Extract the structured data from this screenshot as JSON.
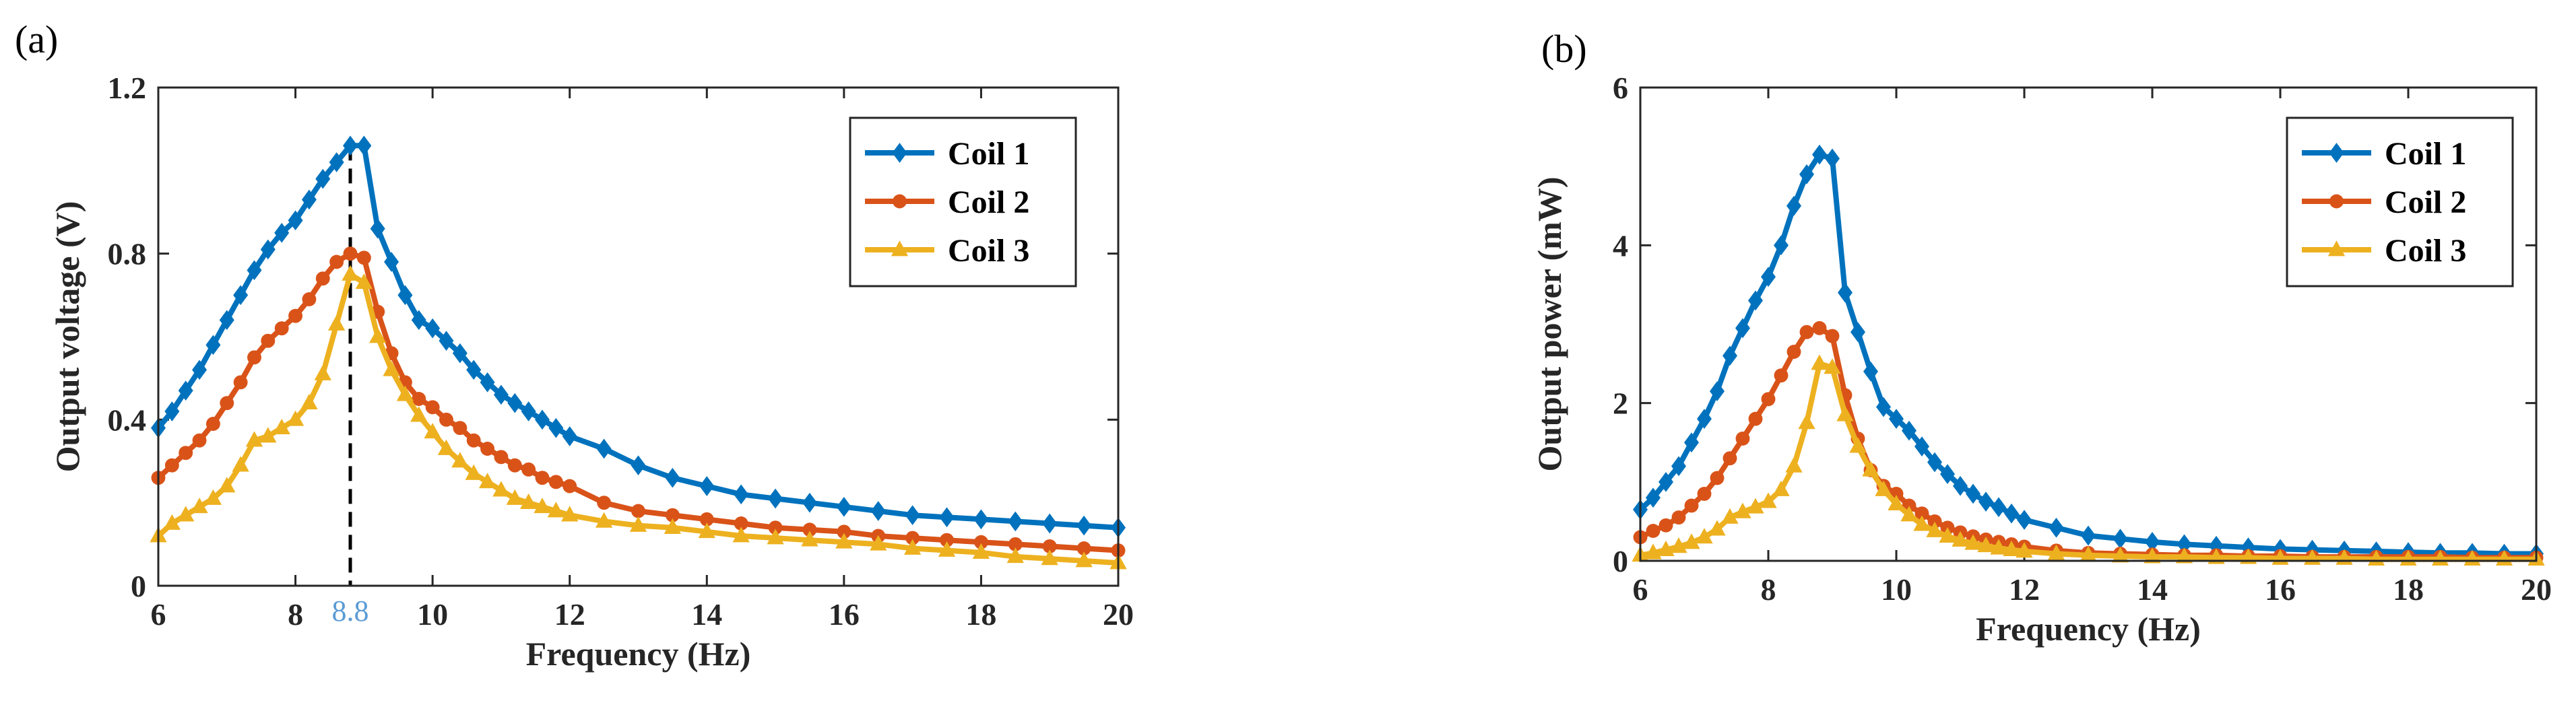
{
  "chart_data": [
    {
      "type": "line",
      "panel_label": "(a)",
      "xlabel": "Frequency (Hz)",
      "ylabel": "Output voltage (V)",
      "xlim": [
        6,
        20
      ],
      "ylim": [
        0,
        1.2
      ],
      "xticks": [
        6,
        8,
        10,
        12,
        14,
        16,
        18,
        20
      ],
      "yticks": [
        0,
        0.4,
        0.8,
        1.2
      ],
      "xtick_labels": [
        "6",
        "8",
        "10",
        "12",
        "14",
        "16",
        "18",
        "20"
      ],
      "ytick_labels": [
        "0",
        "0.4",
        "0.8",
        "1.2"
      ],
      "legend_position": "top-right",
      "annotation": {
        "x": 8.8,
        "label": "8.8",
        "style": "dashed vertical line"
      },
      "series": [
        {
          "name": "Coil 1",
          "color": "#0072bd",
          "marker": "diamond",
          "x": [
            6,
            6.2,
            6.4,
            6.6,
            6.8,
            7,
            7.2,
            7.4,
            7.6,
            7.8,
            8,
            8.2,
            8.4,
            8.6,
            8.8,
            9,
            9.2,
            9.4,
            9.6,
            9.8,
            10,
            10.2,
            10.4,
            10.6,
            10.8,
            11,
            11.2,
            11.4,
            11.6,
            11.8,
            12,
            12.5,
            13,
            13.5,
            14,
            14.5,
            15,
            15.5,
            16,
            16.5,
            17,
            17.5,
            18,
            18.5,
            19,
            19.5,
            20
          ],
          "y": [
            0.38,
            0.42,
            0.47,
            0.52,
            0.58,
            0.64,
            0.7,
            0.76,
            0.81,
            0.85,
            0.88,
            0.93,
            0.98,
            1.02,
            1.06,
            1.06,
            0.86,
            0.78,
            0.7,
            0.64,
            0.62,
            0.59,
            0.56,
            0.52,
            0.49,
            0.46,
            0.44,
            0.42,
            0.4,
            0.38,
            0.36,
            0.33,
            0.29,
            0.26,
            0.24,
            0.22,
            0.21,
            0.2,
            0.19,
            0.18,
            0.17,
            0.165,
            0.16,
            0.155,
            0.15,
            0.145,
            0.14
          ]
        },
        {
          "name": "Coil 2",
          "color": "#d95319",
          "marker": "circle",
          "x": [
            6,
            6.2,
            6.4,
            6.6,
            6.8,
            7,
            7.2,
            7.4,
            7.6,
            7.8,
            8,
            8.2,
            8.4,
            8.6,
            8.8,
            9,
            9.2,
            9.4,
            9.6,
            9.8,
            10,
            10.2,
            10.4,
            10.6,
            10.8,
            11,
            11.2,
            11.4,
            11.6,
            11.8,
            12,
            12.5,
            13,
            13.5,
            14,
            14.5,
            15,
            15.5,
            16,
            16.5,
            17,
            17.5,
            18,
            18.5,
            19,
            19.5,
            20
          ],
          "y": [
            0.26,
            0.29,
            0.32,
            0.35,
            0.39,
            0.44,
            0.49,
            0.55,
            0.59,
            0.62,
            0.65,
            0.69,
            0.74,
            0.78,
            0.8,
            0.79,
            0.66,
            0.56,
            0.49,
            0.45,
            0.43,
            0.4,
            0.38,
            0.35,
            0.33,
            0.31,
            0.29,
            0.28,
            0.26,
            0.25,
            0.24,
            0.2,
            0.18,
            0.17,
            0.16,
            0.15,
            0.14,
            0.135,
            0.13,
            0.12,
            0.115,
            0.11,
            0.105,
            0.1,
            0.095,
            0.09,
            0.085
          ]
        },
        {
          "name": "Coil 3",
          "color": "#edb120",
          "marker": "triangle",
          "x": [
            6,
            6.2,
            6.4,
            6.6,
            6.8,
            7,
            7.2,
            7.4,
            7.6,
            7.8,
            8,
            8.2,
            8.4,
            8.6,
            8.8,
            9,
            9.2,
            9.4,
            9.6,
            9.8,
            10,
            10.2,
            10.4,
            10.6,
            10.8,
            11,
            11.2,
            11.4,
            11.6,
            11.8,
            12,
            12.5,
            13,
            13.5,
            14,
            14.5,
            15,
            15.5,
            16,
            16.5,
            17,
            17.5,
            18,
            18.5,
            19,
            19.5,
            20
          ],
          "y": [
            0.12,
            0.15,
            0.17,
            0.19,
            0.21,
            0.24,
            0.29,
            0.35,
            0.36,
            0.38,
            0.4,
            0.44,
            0.51,
            0.63,
            0.75,
            0.73,
            0.6,
            0.52,
            0.46,
            0.41,
            0.37,
            0.33,
            0.3,
            0.27,
            0.25,
            0.23,
            0.21,
            0.2,
            0.19,
            0.18,
            0.17,
            0.155,
            0.145,
            0.14,
            0.13,
            0.12,
            0.115,
            0.11,
            0.105,
            0.1,
            0.09,
            0.085,
            0.08,
            0.07,
            0.065,
            0.06,
            0.055
          ]
        }
      ]
    },
    {
      "type": "line",
      "panel_label": "(b)",
      "xlabel": "Frequency (Hz)",
      "ylabel": "Output power (mW)",
      "xlim": [
        6,
        20
      ],
      "ylim": [
        0,
        6
      ],
      "xticks": [
        6,
        8,
        10,
        12,
        14,
        16,
        18,
        20
      ],
      "yticks": [
        0,
        2,
        4,
        6
      ],
      "xtick_labels": [
        "6",
        "8",
        "10",
        "12",
        "14",
        "16",
        "18",
        "20"
      ],
      "ytick_labels": [
        "0",
        "2",
        "4",
        "6"
      ],
      "legend_position": "top-right",
      "series": [
        {
          "name": "Coil 1",
          "color": "#0072bd",
          "marker": "diamond",
          "x": [
            6,
            6.2,
            6.4,
            6.6,
            6.8,
            7,
            7.2,
            7.4,
            7.6,
            7.8,
            8,
            8.2,
            8.4,
            8.6,
            8.8,
            9,
            9.2,
            9.4,
            9.6,
            9.8,
            10,
            10.2,
            10.4,
            10.6,
            10.8,
            11,
            11.2,
            11.4,
            11.6,
            11.8,
            12,
            12.5,
            13,
            13.5,
            14,
            14.5,
            15,
            15.5,
            16,
            16.5,
            17,
            17.5,
            18,
            18.5,
            19,
            19.5,
            20
          ],
          "y": [
            0.65,
            0.8,
            1.0,
            1.2,
            1.5,
            1.8,
            2.15,
            2.6,
            2.95,
            3.3,
            3.6,
            4.0,
            4.5,
            4.9,
            5.15,
            5.1,
            3.4,
            2.9,
            2.4,
            1.95,
            1.8,
            1.65,
            1.45,
            1.25,
            1.1,
            0.95,
            0.85,
            0.75,
            0.68,
            0.6,
            0.52,
            0.42,
            0.32,
            0.28,
            0.24,
            0.21,
            0.19,
            0.17,
            0.15,
            0.14,
            0.13,
            0.12,
            0.11,
            0.1,
            0.1,
            0.09,
            0.09
          ]
        },
        {
          "name": "Coil 2",
          "color": "#d95319",
          "marker": "circle",
          "x": [
            6,
            6.2,
            6.4,
            6.6,
            6.8,
            7,
            7.2,
            7.4,
            7.6,
            7.8,
            8,
            8.2,
            8.4,
            8.6,
            8.8,
            9,
            9.2,
            9.4,
            9.6,
            9.8,
            10,
            10.2,
            10.4,
            10.6,
            10.8,
            11,
            11.2,
            11.4,
            11.6,
            11.8,
            12,
            12.5,
            13,
            13.5,
            14,
            14.5,
            15,
            15.5,
            16,
            16.5,
            17,
            17.5,
            18,
            18.5,
            19,
            19.5,
            20
          ],
          "y": [
            0.3,
            0.38,
            0.45,
            0.55,
            0.7,
            0.85,
            1.05,
            1.3,
            1.55,
            1.8,
            2.05,
            2.35,
            2.65,
            2.9,
            2.95,
            2.85,
            2.1,
            1.55,
            1.15,
            0.95,
            0.85,
            0.7,
            0.6,
            0.5,
            0.42,
            0.36,
            0.31,
            0.27,
            0.24,
            0.21,
            0.18,
            0.13,
            0.1,
            0.09,
            0.08,
            0.07,
            0.07,
            0.06,
            0.06,
            0.05,
            0.05,
            0.05,
            0.05,
            0.05,
            0.04,
            0.04,
            0.04
          ]
        },
        {
          "name": "Coil 3",
          "color": "#edb120",
          "marker": "triangle",
          "x": [
            6,
            6.2,
            6.4,
            6.6,
            6.8,
            7,
            7.2,
            7.4,
            7.6,
            7.8,
            8,
            8.2,
            8.4,
            8.6,
            8.8,
            9,
            9.2,
            9.4,
            9.6,
            9.8,
            10,
            10.2,
            10.4,
            10.6,
            10.8,
            11,
            11.2,
            11.4,
            11.6,
            11.8,
            12,
            12.5,
            13,
            13.5,
            14,
            14.5,
            15,
            15.5,
            16,
            16.5,
            17,
            17.5,
            18,
            18.5,
            19,
            19.5,
            20
          ],
          "y": [
            0.07,
            0.1,
            0.14,
            0.18,
            0.23,
            0.3,
            0.4,
            0.55,
            0.62,
            0.68,
            0.75,
            0.9,
            1.2,
            1.75,
            2.5,
            2.45,
            1.85,
            1.45,
            1.15,
            0.9,
            0.72,
            0.58,
            0.46,
            0.38,
            0.31,
            0.26,
            0.22,
            0.19,
            0.16,
            0.14,
            0.12,
            0.09,
            0.07,
            0.06,
            0.05,
            0.05,
            0.04,
            0.04,
            0.03,
            0.03,
            0.03,
            0.02,
            0.02,
            0.02,
            0.02,
            0.02,
            0.02
          ]
        }
      ]
    }
  ]
}
